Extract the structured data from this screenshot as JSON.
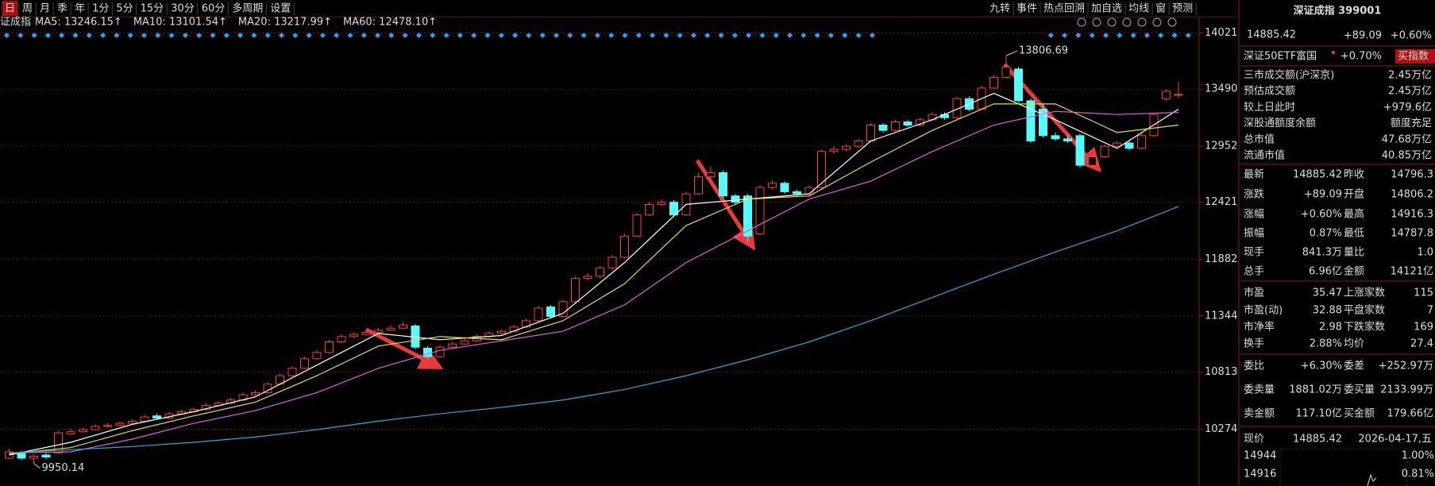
{
  "toolbar": {
    "periods": [
      "日",
      "周",
      "月",
      "季",
      "年",
      "1分",
      "5分",
      "15分",
      "30分",
      "60分",
      "多周期",
      "设置"
    ],
    "tools": [
      "九转",
      "事件",
      "热点回溯",
      "加自选",
      "均线",
      "窗",
      "预测"
    ]
  },
  "chart_data": {
    "type": "candlestick",
    "title": "证成指",
    "up_color": "#ff3c3c",
    "down_color": "#54fcfc",
    "grid": true,
    "ylim": [
      9737,
      14070
    ],
    "yticks": [
      14021,
      13490,
      12952,
      12421,
      11882,
      11344,
      10813,
      10274
    ],
    "ohlc": [
      [
        10000,
        10090,
        9990,
        10060
      ],
      [
        10050,
        10070,
        9980,
        10000
      ],
      [
        10000,
        10040,
        9950.14,
        10020
      ],
      [
        10030,
        10050,
        9990,
        10010
      ],
      [
        10050,
        10260,
        10040,
        10240
      ],
      [
        10230,
        10280,
        10220,
        10250
      ],
      [
        10250,
        10290,
        10240,
        10270
      ],
      [
        10270,
        10320,
        10260,
        10300
      ],
      [
        10300,
        10330,
        10290,
        10310
      ],
      [
        10310,
        10350,
        10300,
        10330
      ],
      [
        10330,
        10370,
        10320,
        10350
      ],
      [
        10350,
        10410,
        10340,
        10390
      ],
      [
        10400,
        10420,
        10370,
        10380
      ],
      [
        10380,
        10440,
        10370,
        10420
      ],
      [
        10420,
        10460,
        10410,
        10440
      ],
      [
        10440,
        10480,
        10430,
        10460
      ],
      [
        10460,
        10520,
        10450,
        10500
      ],
      [
        10500,
        10540,
        10490,
        10520
      ],
      [
        10520,
        10570,
        10510,
        10550
      ],
      [
        10550,
        10620,
        10540,
        10600
      ],
      [
        10600,
        10640,
        10590,
        10620
      ],
      [
        10620,
        10720,
        10610,
        10700
      ],
      [
        10700,
        10800,
        10690,
        10780
      ],
      [
        10780,
        10870,
        10770,
        10850
      ],
      [
        10850,
        10960,
        10840,
        10940
      ],
      [
        10940,
        11020,
        10930,
        11000
      ],
      [
        11000,
        11120,
        10990,
        11100
      ],
      [
        11100,
        11170,
        11090,
        11150
      ],
      [
        11150,
        11190,
        11140,
        11170
      ],
      [
        11170,
        11210,
        11160,
        11190
      ],
      [
        11190,
        11230,
        11180,
        11210
      ],
      [
        11210,
        11260,
        11200,
        11230
      ],
      [
        11230,
        11290,
        11220,
        11260
      ],
      [
        11250,
        11270,
        11030,
        11050
      ],
      [
        11040,
        11060,
        10940,
        10960
      ],
      [
        10960,
        11070,
        10950,
        11050
      ],
      [
        11050,
        11100,
        11040,
        11080
      ],
      [
        11080,
        11130,
        11070,
        11110
      ],
      [
        11110,
        11170,
        11100,
        11150
      ],
      [
        11150,
        11200,
        11140,
        11180
      ],
      [
        11180,
        11220,
        11170,
        11200
      ],
      [
        11200,
        11260,
        11190,
        11240
      ],
      [
        11240,
        11320,
        11230,
        11300
      ],
      [
        11300,
        11440,
        11290,
        11420
      ],
      [
        11430,
        11450,
        11320,
        11340
      ],
      [
        11340,
        11500,
        11330,
        11480
      ],
      [
        11480,
        11720,
        11470,
        11700
      ],
      [
        11700,
        11750,
        11680,
        11720
      ],
      [
        11720,
        11820,
        11700,
        11800
      ],
      [
        11800,
        11920,
        11780,
        11900
      ],
      [
        11900,
        12120,
        11890,
        12100
      ],
      [
        12100,
        12320,
        12090,
        12300
      ],
      [
        12300,
        12420,
        12290,
        12400
      ],
      [
        12400,
        12450,
        12380,
        12420
      ],
      [
        12420,
        12440,
        12280,
        12300
      ],
      [
        12300,
        12520,
        12290,
        12500
      ],
      [
        12500,
        12700,
        12490,
        12660
      ],
      [
        12660,
        12760,
        12640,
        12700
      ],
      [
        12700,
        12720,
        12460,
        12480
      ],
      [
        12480,
        12500,
        12400,
        12420
      ],
      [
        12480,
        12500,
        12040,
        12100
      ],
      [
        12120,
        12580,
        12110,
        12560
      ],
      [
        12560,
        12630,
        12540,
        12600
      ],
      [
        12600,
        12620,
        12500,
        12520
      ],
      [
        12520,
        12540,
        12480,
        12500
      ],
      [
        12500,
        12580,
        12490,
        12560
      ],
      [
        12560,
        12920,
        12550,
        12900
      ],
      [
        12900,
        12950,
        12880,
        12920
      ],
      [
        12920,
        12970,
        12900,
        12950
      ],
      [
        12950,
        13020,
        12930,
        13000
      ],
      [
        13000,
        13170,
        12990,
        13150
      ],
      [
        13150,
        13170,
        13080,
        13100
      ],
      [
        13100,
        13200,
        13090,
        13180
      ],
      [
        13180,
        13200,
        13130,
        13150
      ],
      [
        13150,
        13220,
        13140,
        13200
      ],
      [
        13200,
        13270,
        13190,
        13250
      ],
      [
        13250,
        13270,
        13200,
        13220
      ],
      [
        13220,
        13420,
        13210,
        13400
      ],
      [
        13400,
        13420,
        13280,
        13300
      ],
      [
        13300,
        13520,
        13290,
        13500
      ],
      [
        13500,
        13620,
        13490,
        13600
      ],
      [
        13600,
        13806.69,
        13590,
        13700
      ],
      [
        13680,
        13700,
        13360,
        13380
      ],
      [
        13380,
        13400,
        12980,
        13000
      ],
      [
        13300,
        13350,
        13030,
        13050
      ],
      [
        13050,
        13080,
        13000,
        13020
      ],
      [
        13020,
        13060,
        12980,
        13000
      ],
      [
        13050,
        13070,
        12750,
        12770
      ],
      [
        12770,
        12870,
        12760,
        12850
      ],
      [
        12850,
        12970,
        12840,
        12950
      ],
      [
        12950,
        13000,
        12940,
        12980
      ],
      [
        12980,
        13000,
        12910,
        12930
      ],
      [
        12930,
        13070,
        12920,
        13050
      ],
      [
        13050,
        13270,
        13040,
        13250
      ],
      [
        13400,
        13490,
        13380,
        13470
      ],
      [
        13440,
        13560,
        13400,
        13440
      ]
    ],
    "series": [
      {
        "name": "MA5: 13246.15↑",
        "color": "#ffffff",
        "x": [
          0,
          5,
          10,
          15,
          20,
          25,
          30,
          35,
          40,
          45,
          50,
          55,
          60,
          65,
          70,
          75,
          80,
          85,
          90,
          95
        ],
        "values": [
          10030,
          10150,
          10320,
          10440,
          10580,
          10880,
          11180,
          11120,
          11160,
          11370,
          11850,
          12400,
          12450,
          12500,
          13000,
          13200,
          13450,
          13200,
          12930,
          13300
        ]
      },
      {
        "name": "MA10: 13101.54↑",
        "color": "#f0e020",
        "x": [
          0,
          5,
          10,
          15,
          20,
          25,
          30,
          35,
          40,
          45,
          50,
          55,
          60,
          65,
          70,
          75,
          80,
          85,
          90,
          95
        ],
        "values": [
          10040,
          10100,
          10260,
          10400,
          10530,
          10780,
          11060,
          11150,
          11120,
          11300,
          11650,
          12200,
          12450,
          12480,
          12800,
          13100,
          13350,
          13350,
          13080,
          13150
        ]
      },
      {
        "name": "MA20: 13217.99↑",
        "color": "#e060e0",
        "x": [
          0,
          5,
          10,
          15,
          20,
          25,
          30,
          35,
          40,
          45,
          50,
          55,
          60,
          65,
          70,
          75,
          80,
          85,
          90,
          95
        ],
        "values": [
          10050,
          10060,
          10180,
          10330,
          10450,
          10620,
          10850,
          11020,
          11110,
          11200,
          11450,
          11850,
          12150,
          12450,
          12620,
          12900,
          13150,
          13280,
          13250,
          13270
        ]
      },
      {
        "name": "MA60: 12478.10↑",
        "color": "#20b0d8",
        "x": [
          0,
          5,
          10,
          15,
          20,
          25,
          30,
          35,
          40,
          45,
          50,
          55,
          60,
          65,
          70,
          75,
          80,
          85,
          90,
          95
        ],
        "values": [
          10050,
          10080,
          10110,
          10150,
          10200,
          10270,
          10350,
          10420,
          10480,
          10550,
          10650,
          10780,
          10930,
          11100,
          11300,
          11520,
          11740,
          11950,
          12150,
          12380
        ]
      }
    ]
  },
  "panel": {
    "title": "深证成指 399001",
    "price": "14885.42",
    "change": "+89.09",
    "pct": "+0.60%",
    "etf": {
      "name": "深证50ETF富国",
      "pct": "+0.70%",
      "button": "买指数"
    },
    "stats": [
      [
        "三市成交额(沪深京)",
        "2.45万亿"
      ],
      [
        "预估成交额",
        "2.45万亿"
      ],
      [
        "较上日此时",
        "+979.6亿"
      ],
      [
        "深股通额度余额",
        "额度充足"
      ],
      [
        "总市值",
        "47.68万亿"
      ],
      [
        "流通市值",
        "40.85万亿"
      ]
    ],
    "quotes": [
      [
        "最新",
        "14885.42",
        "昨收",
        "14796.3"
      ],
      [
        "涨跌",
        "+89.09",
        "开盘",
        "14806.2"
      ],
      [
        "涨幅",
        "+0.60%",
        "最高",
        "14916.3"
      ],
      [
        "振幅",
        "0.87%",
        "最低",
        "14787.8"
      ],
      [
        "现手",
        "841.3万",
        "量比",
        "1.0"
      ],
      [
        "总手",
        "6.96亿",
        "金额",
        "14121亿"
      ],
      [
        "市盈",
        "35.47",
        "上涨家数",
        "115"
      ],
      [
        "市盈(动)",
        "32.88",
        "平盘家数",
        "7"
      ],
      [
        "市净率",
        "2.98",
        "下跌家数",
        "169"
      ],
      [
        "换手",
        "2.88%",
        "均价",
        "27.4"
      ],
      [
        "委比",
        "+6.30%",
        "委差",
        "+252.97万"
      ],
      [
        "委卖量",
        "1881.02万",
        "委买量",
        "2133.99万"
      ],
      [
        "卖金额",
        "117.10亿",
        "买金额",
        "179.66亿"
      ]
    ],
    "quote_colors": [
      [
        "#ff3c3c",
        "#ffffff"
      ],
      [
        "#ff3c3c",
        "#ff3c3c"
      ],
      [
        "#ff3c3c",
        "#ff3c3c"
      ],
      [
        "#54fcfc",
        "#ff3c3c"
      ],
      [
        "#f0e020",
        "#f0e020"
      ],
      [
        "#f0e020",
        "#f0e020"
      ],
      [
        "#ffffff",
        "#ff3c3c"
      ],
      [
        "#ffffff",
        "#ffffff"
      ],
      [
        "#ffffff",
        "#54fcfc"
      ],
      [
        "#54fcfc",
        "#f0e020"
      ],
      [
        "#ff3c3c",
        "#ff3c3c"
      ],
      [
        "#f0e020",
        "#f0e020"
      ],
      [
        "#f0e020",
        "#f0e020"
      ]
    ],
    "footer": {
      "label": "现价",
      "price": "14885.42",
      "date": "2026-04-17,五"
    },
    "mini": [
      "14944",
      "1.00%",
      "14916",
      "0.81%"
    ]
  }
}
